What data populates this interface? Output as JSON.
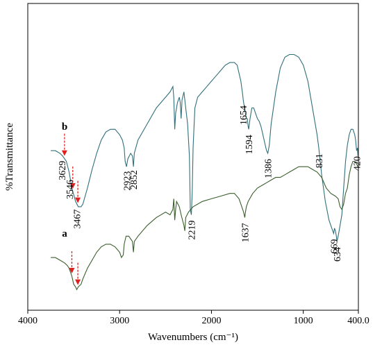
{
  "chart_data": {
    "type": "line",
    "title": "",
    "xlabel": "Wavenumbers (cm⁻¹)",
    "ylabel": "%Transmittance",
    "xlim": [
      4000,
      400
    ],
    "x_reversed": true,
    "x_ticks": [
      {
        "value": 4000,
        "label": "4000"
      },
      {
        "value": 3000,
        "label": "3000"
      },
      {
        "value": 2000,
        "label": "2000"
      },
      {
        "value": 1000,
        "label": "1000"
      },
      {
        "value": 400,
        "label": "400.0"
      }
    ],
    "y_ticks": [],
    "grid": false,
    "legend": "none",
    "series": [
      {
        "trace_label": "b",
        "color": "#2f6f7a",
        "x": [
          3750,
          3700,
          3650,
          3620,
          3600,
          3580,
          3550,
          3520,
          3480,
          3450,
          3420,
          3400,
          3350,
          3300,
          3250,
          3200,
          3150,
          3100,
          3050,
          3000,
          2970,
          2950,
          2940,
          2925,
          2910,
          2880,
          2860,
          2850,
          2840,
          2800,
          2700,
          2600,
          2500,
          2450,
          2420,
          2410,
          2400,
          2390,
          2370,
          2350,
          2340,
          2330,
          2320,
          2300,
          2280,
          2260,
          2240,
          2230,
          2219,
          2210,
          2200,
          2180,
          2150,
          2100,
          2050,
          2000,
          1950,
          1900,
          1850,
          1800,
          1750,
          1720,
          1700,
          1680,
          1660,
          1654,
          1640,
          1620,
          1610,
          1600,
          1594,
          1580,
          1560,
          1540,
          1520,
          1500,
          1480,
          1460,
          1440,
          1420,
          1400,
          1386,
          1370,
          1350,
          1300,
          1250,
          1200,
          1150,
          1100,
          1050,
          1000,
          950,
          900,
          850,
          831,
          800,
          760,
          720,
          690,
          680,
          669,
          660,
          650,
          640,
          634,
          620,
          600,
          580,
          560,
          540,
          520,
          500,
          480,
          460,
          440,
          430,
          420,
          410,
          405
        ],
        "y": [
          54,
          54,
          53,
          52,
          51,
          50,
          46,
          40,
          35,
          33,
          33,
          34,
          40,
          47,
          53,
          58,
          61,
          62,
          62,
          60,
          58,
          55,
          50,
          48,
          51,
          53,
          52,
          48,
          53,
          58,
          64,
          70,
          74,
          76,
          78,
          74,
          62,
          68,
          72,
          74,
          72,
          66,
          73,
          76,
          70,
          64,
          52,
          32,
          30,
          38,
          55,
          70,
          74,
          76,
          78,
          80,
          82,
          84,
          86,
          87,
          87,
          86,
          83,
          80,
          75,
          73,
          70,
          66,
          66,
          63,
          62,
          66,
          70,
          70,
          68,
          66,
          65,
          63,
          60,
          57,
          54,
          53,
          56,
          64,
          76,
          85,
          89,
          90,
          90,
          89,
          86,
          80,
          70,
          60,
          55,
          45,
          35,
          28,
          25,
          24,
          23,
          25,
          24,
          22,
          20,
          22,
          26,
          30,
          40,
          50,
          56,
          60,
          62,
          62,
          60,
          58,
          54,
          55,
          52
        ]
      },
      {
        "trace_label": "a",
        "color": "#3a5e2c",
        "x": [
          3750,
          3700,
          3650,
          3600,
          3570,
          3550,
          3520,
          3500,
          3480,
          3467,
          3450,
          3420,
          3400,
          3350,
          3300,
          3250,
          3200,
          3150,
          3100,
          3050,
          3000,
          2980,
          2960,
          2950,
          2930,
          2900,
          2860,
          2850,
          2840,
          2800,
          2700,
          2600,
          2500,
          2450,
          2420,
          2410,
          2400,
          2390,
          2380,
          2350,
          2330,
          2300,
          2290,
          2280,
          2250,
          2200,
          2100,
          2000,
          1900,
          1800,
          1750,
          1700,
          1680,
          1660,
          1650,
          1637,
          1630,
          1620,
          1600,
          1550,
          1500,
          1450,
          1400,
          1350,
          1300,
          1250,
          1200,
          1150,
          1100,
          1050,
          1000,
          950,
          900,
          850,
          800,
          750,
          700,
          650,
          620,
          600,
          580,
          560,
          540,
          520,
          500,
          480,
          460,
          440,
          420,
          405
        ],
        "y": [
          14,
          14,
          13,
          12,
          11,
          10,
          7,
          4,
          3,
          2,
          3,
          4,
          6,
          10,
          13,
          16,
          18,
          19,
          19,
          18,
          16,
          14,
          15,
          19,
          22,
          22,
          20,
          16,
          20,
          22,
          26,
          29,
          31,
          30,
          32,
          36,
          28,
          32,
          35,
          33,
          30,
          26,
          24,
          29,
          31,
          33,
          35,
          36,
          37,
          38,
          38,
          36,
          34,
          32,
          31,
          29,
          31,
          33,
          35,
          38,
          40,
          41,
          42,
          43,
          44,
          44,
          45,
          46,
          47,
          48,
          48,
          48,
          47,
          46,
          44,
          40,
          38,
          37,
          36,
          33,
          32,
          34,
          38,
          40,
          45,
          48,
          50,
          50,
          49,
          48
        ]
      }
    ],
    "trace_labels": [
      "b",
      "a"
    ],
    "peak_annotations": [
      {
        "label": "3629",
        "x": 3629,
        "trace": "b"
      },
      {
        "label": "3546",
        "x": 3546,
        "trace": "b"
      },
      {
        "label": "3467",
        "x": 3467,
        "trace": "b"
      },
      {
        "label": "2923",
        "x": 2923,
        "trace": "b"
      },
      {
        "label": "2852",
        "x": 2852,
        "trace": "b"
      },
      {
        "label": "2219",
        "x": 2219,
        "trace": "b"
      },
      {
        "label": "1654",
        "x": 1654,
        "trace": "b"
      },
      {
        "label": "1594",
        "x": 1594,
        "trace": "b"
      },
      {
        "label": "1386",
        "x": 1386,
        "trace": "b"
      },
      {
        "label": "831",
        "x": 831,
        "trace": "b"
      },
      {
        "label": "669",
        "x": 669,
        "trace": "b"
      },
      {
        "label": "634",
        "x": 634,
        "trace": "b"
      },
      {
        "label": "420",
        "x": 420,
        "trace": "b"
      },
      {
        "label": "1637",
        "x": 1637,
        "trace": "a"
      }
    ],
    "arrows": [
      {
        "trace": "b",
        "x": 3600
      },
      {
        "trace": "b",
        "x": 3510
      },
      {
        "trace": "b",
        "x": 3455
      },
      {
        "trace": "a",
        "x": 3520
      },
      {
        "trace": "a",
        "x": 3455
      }
    ],
    "arrow_color": "#e02020"
  }
}
